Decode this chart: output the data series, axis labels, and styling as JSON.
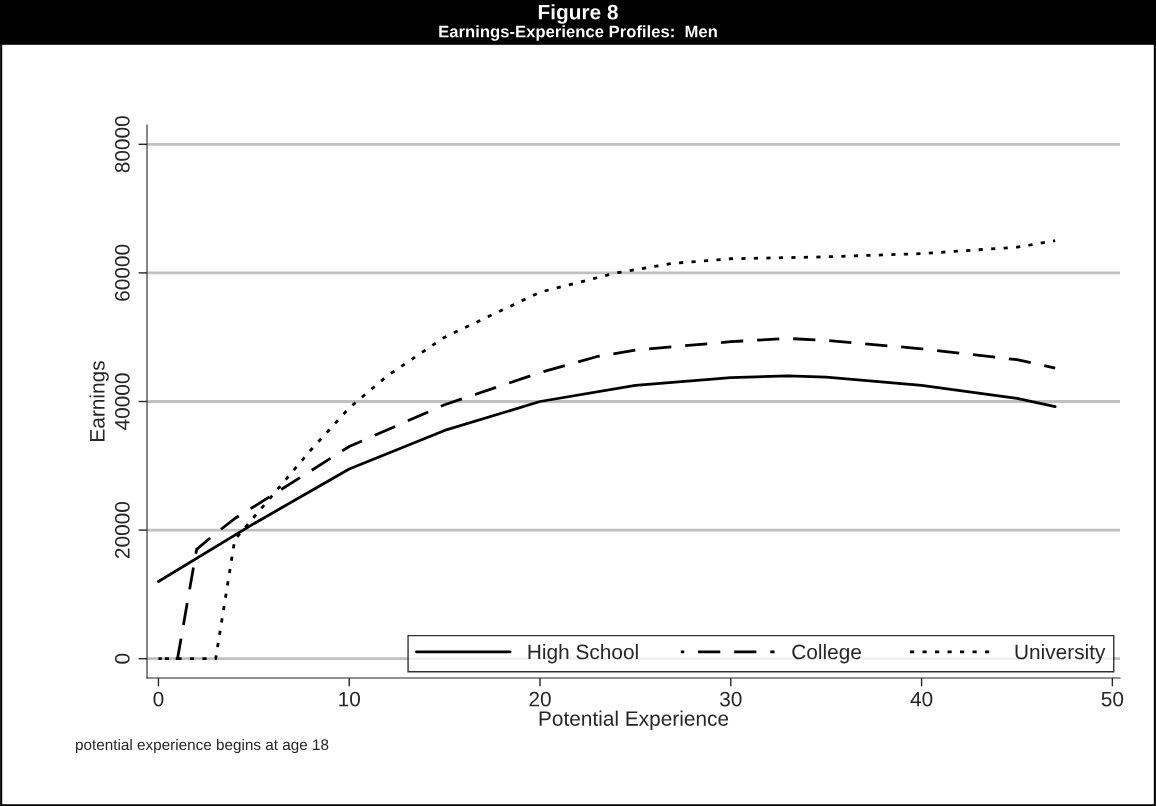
{
  "chart_data": {
    "type": "line",
    "title": "Figure 8",
    "subtitle": "Earnings-Experience Profiles:  Men",
    "xlabel": "Potential Experience",
    "ylabel": "Earnings",
    "xlim": [
      -0.6,
      50.4
    ],
    "ylim": [
      -3000,
      83000
    ],
    "xticks": [
      0,
      10,
      20,
      30,
      40,
      50
    ],
    "yticks": [
      0,
      20000,
      40000,
      60000,
      80000
    ],
    "grid": "y",
    "legend": "bottom right",
    "annotations": [
      "potential experience begins at age 18"
    ],
    "series": [
      {
        "name": "High School",
        "color": "#000000",
        "line_style": "solid",
        "x": [
          0,
          5,
          10,
          15,
          20,
          25,
          30,
          33,
          35,
          40,
          45,
          47
        ],
        "values": [
          12000,
          21000,
          29500,
          35500,
          40000,
          42500,
          43700,
          44000,
          43800,
          42500,
          40500,
          39200
        ]
      },
      {
        "name": "College",
        "color": "#000000",
        "line_style": "dashed",
        "x": [
          0,
          1,
          2,
          3,
          4,
          6,
          10,
          15,
          20,
          23,
          25,
          30,
          33,
          35,
          40,
          45,
          47
        ],
        "values": [
          0,
          0,
          17000,
          19500,
          21800,
          25500,
          33000,
          39500,
          44500,
          47000,
          48000,
          49300,
          49800,
          49500,
          48200,
          46500,
          45200
        ]
      },
      {
        "name": "University",
        "color": "#000000",
        "line_style": "dotted",
        "x": [
          0,
          1,
          2,
          3,
          4,
          5,
          6,
          8,
          10,
          12,
          15,
          20,
          24,
          27,
          30,
          35,
          40,
          45,
          47
        ],
        "values": [
          0,
          0,
          0,
          0,
          18500,
          22000,
          25500,
          32500,
          39000,
          44000,
          50000,
          57000,
          60000,
          61500,
          62200,
          62500,
          63000,
          64000,
          65000
        ]
      }
    ]
  }
}
